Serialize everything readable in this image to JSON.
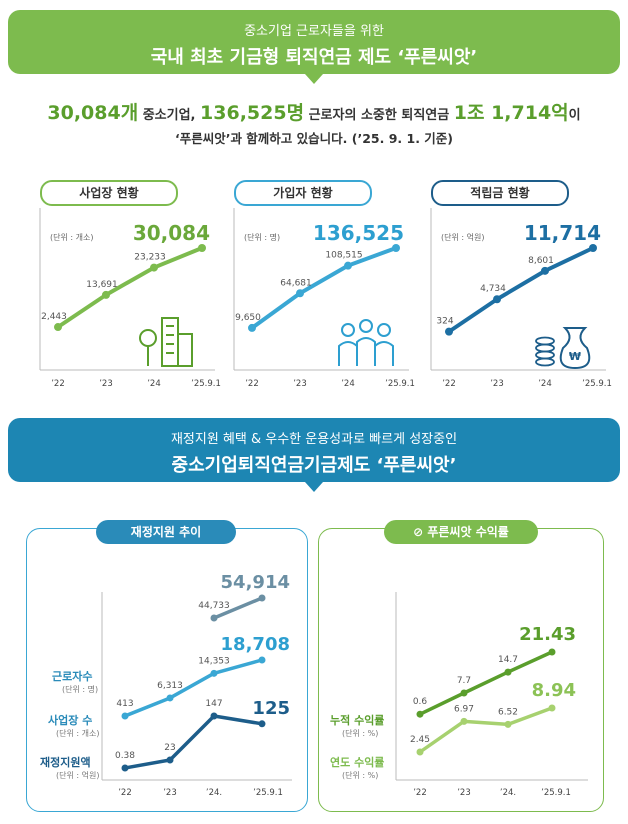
{
  "header": {
    "subtitle": "중소기업 근로자들을 위한",
    "title": "국내 최초 기금형 퇴직연금 제도 ‘푸른씨앗’"
  },
  "summary": {
    "companies_num": "30,084개",
    "companies_text": "중소기업,",
    "workers_num": "136,525명",
    "workers_text": "근로자의 소중한 퇴직연금",
    "fund_num": "1조 1,714억",
    "fund_suffix": "이",
    "line2": "‘푸른씨앗’과 함께하고 있습니다. (’25. 9. 1. 기준)"
  },
  "section2": {
    "subtitle": "재정지원 혜택 & 우수한 운용성과로 빠르게 성장중인",
    "title": "중소기업퇴직연금기금제도 ‘푸른씨앗’"
  },
  "colors": {
    "green": "#7dbb4e",
    "blue": "#3aa7d4",
    "navy": "#1d5d8a",
    "lightgreen": "#a7d16f",
    "grey": "#6b8fa3"
  },
  "chart_data": [
    {
      "type": "line",
      "title": "사업장 현황",
      "unit": "(단위 : 개소)",
      "highlight": "30,084",
      "categories": [
        "’22",
        "’23",
        "’24",
        "’25.9.1"
      ],
      "series": [
        {
          "values": [
            2443,
            13691,
            23233,
            30084
          ],
          "labels": [
            "2,443",
            "13,691",
            "23,233",
            ""
          ]
        }
      ],
      "icon": "building-icon"
    },
    {
      "type": "line",
      "title": "가입자 현황",
      "unit": "(단위 : 명)",
      "highlight": "136,525",
      "categories": [
        "’22",
        "’23",
        "’24",
        "’25.9.1"
      ],
      "series": [
        {
          "values": [
            9650,
            64681,
            108515,
            136525
          ],
          "labels": [
            "9,650",
            "64,681",
            "108,515",
            ""
          ]
        }
      ],
      "icon": "people-icon"
    },
    {
      "type": "line",
      "title": "적립금 현황",
      "unit": "(단위 : 억원)",
      "highlight": "11,714",
      "categories": [
        "’22",
        "’23",
        "’24",
        "’25.9.1"
      ],
      "series": [
        {
          "values": [
            324,
            4734,
            8601,
            11714
          ],
          "labels": [
            "324",
            "4,734",
            "8,601",
            ""
          ]
        }
      ],
      "icon": "money-bag-icon"
    },
    {
      "type": "line",
      "title": "재정지원 추이",
      "categories": [
        "’22",
        "’23",
        "’24.",
        "’25.9.1"
      ],
      "series": [
        {
          "name": "근로자수",
          "unit": "(단위 : 명)",
          "values": [
            413,
            6313,
            14353,
            18708
          ],
          "labels": [
            "413",
            "6,313",
            "14,353",
            "18,708"
          ]
        },
        {
          "name": "사업장 수",
          "unit": "(단위 : 개소)",
          "values": [
            null,
            null,
            44733,
            54914
          ],
          "labels": [
            "",
            "",
            "44,733",
            "54,914"
          ]
        },
        {
          "name": "재정지원액",
          "unit": "(단위 : 억원)",
          "values": [
            0.38,
            23,
            147,
            125
          ],
          "labels": [
            "0.38",
            "23",
            "147",
            "125"
          ]
        }
      ]
    },
    {
      "type": "line",
      "title": "푸른씨앗 수익률",
      "categories": [
        "’22",
        "’23",
        "’24.",
        "’25.9.1"
      ],
      "series": [
        {
          "name": "누적 수익률",
          "unit": "(단위 : %)",
          "values": [
            0.6,
            7.7,
            14.7,
            21.43
          ],
          "labels": [
            "0.6",
            "7.7",
            "14.7",
            "21.43"
          ]
        },
        {
          "name": "연도 수익률",
          "unit": "(단위 : %)",
          "values": [
            2.45,
            6.97,
            6.52,
            8.94
          ],
          "labels": [
            "2.45",
            "6.97",
            "6.52",
            "8.94"
          ]
        }
      ]
    }
  ]
}
